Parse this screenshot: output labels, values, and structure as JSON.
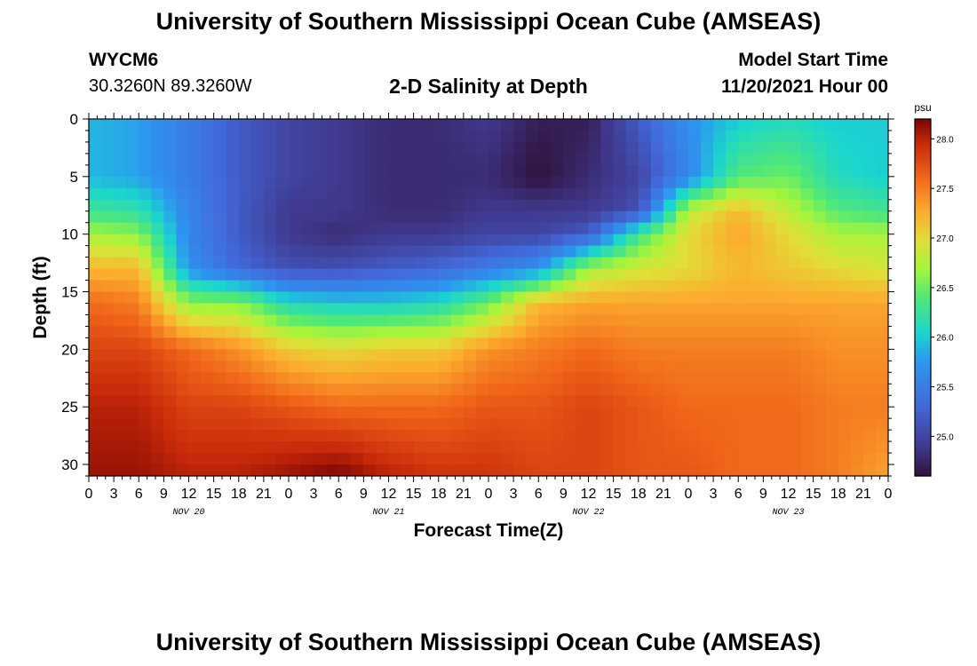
{
  "header": {
    "title_top": "University of Southern Mississippi Ocean Cube (AMSEAS)",
    "title_bottom": "University of Southern Mississippi Ocean Cube (AMSEAS)",
    "station": "WYCM6",
    "coords": "30.3260N  89.3260W",
    "subtitle": "2-D Salinity at Depth",
    "model_start_label": "Model Start Time",
    "model_start_value": "11/20/2021 Hour 00"
  },
  "chart_data": {
    "type": "heatmap",
    "title": "2-D Salinity at Depth",
    "xlabel": "Forecast Time(Z)",
    "ylabel": "Depth (ft)",
    "x_tick_labels": [
      "0",
      "3",
      "6",
      "9",
      "12",
      "15",
      "18",
      "21",
      "0",
      "3",
      "6",
      "9",
      "12",
      "15",
      "18",
      "21",
      "0",
      "3",
      "6",
      "9",
      "12",
      "15",
      "18",
      "21",
      "0",
      "3",
      "6",
      "9",
      "12",
      "15",
      "18",
      "21",
      "0"
    ],
    "x_range_hours": [
      0,
      96
    ],
    "day_labels": [
      {
        "label": "NOV 20",
        "hour": 12
      },
      {
        "label": "NOV 21",
        "hour": 36
      },
      {
        "label": "NOV 22",
        "hour": 60
      },
      {
        "label": "NOV 23",
        "hour": 84
      }
    ],
    "y_ticks": [
      0,
      5,
      10,
      15,
      20,
      25,
      30
    ],
    "y_tick_labels": [
      "0",
      "5",
      "10",
      "15",
      "20",
      "25",
      "30"
    ],
    "ylim": [
      0,
      31
    ],
    "y_inverted": true,
    "colorbar": {
      "unit": "psu",
      "range": [
        24.6,
        28.2
      ],
      "ticks": [
        25.0,
        25.5,
        26.0,
        26.5,
        27.0,
        27.5,
        28.0
      ],
      "tick_labels": [
        "25.0",
        "25.5",
        "26.0",
        "26.5",
        "27.0",
        "27.5",
        "28.0"
      ]
    },
    "grid_hours": [
      0,
      6,
      12,
      18,
      24,
      30,
      36,
      42,
      48,
      54,
      60,
      66,
      72,
      78,
      84,
      90,
      96
    ],
    "grid_depths": [
      0,
      5,
      8,
      10,
      13,
      16,
      20,
      25,
      31
    ],
    "salinity_psu": [
      [
        25.9,
        25.8,
        25.5,
        25.2,
        25.0,
        24.9,
        24.8,
        24.8,
        24.9,
        24.7,
        24.7,
        25.2,
        25.7,
        26.0,
        26.1,
        26.0,
        26.0
      ],
      [
        25.9,
        25.8,
        25.5,
        25.2,
        25.0,
        24.9,
        24.8,
        24.8,
        24.8,
        24.6,
        24.8,
        25.0,
        25.6,
        26.4,
        26.5,
        26.1,
        26.0
      ],
      [
        26.3,
        26.2,
        25.6,
        25.2,
        24.9,
        24.9,
        24.8,
        24.8,
        24.9,
        24.9,
        24.9,
        25.1,
        26.8,
        27.2,
        26.8,
        26.4,
        26.3
      ],
      [
        26.7,
        26.6,
        25.6,
        25.2,
        24.9,
        24.8,
        24.9,
        24.9,
        25.0,
        25.0,
        25.2,
        26.3,
        27.0,
        27.3,
        27.0,
        26.7,
        26.7
      ],
      [
        27.2,
        27.2,
        25.7,
        25.3,
        25.1,
        25.1,
        25.2,
        25.3,
        25.5,
        25.7,
        26.7,
        26.9,
        27.0,
        27.2,
        27.1,
        27.0,
        26.9
      ],
      [
        27.6,
        27.5,
        26.6,
        26.6,
        26.1,
        26.0,
        26.0,
        26.1,
        26.5,
        27.2,
        27.3,
        27.3,
        27.3,
        27.3,
        27.3,
        27.3,
        27.3
      ],
      [
        27.8,
        27.8,
        27.6,
        27.4,
        27.1,
        27.0,
        27.1,
        27.1,
        27.4,
        27.5,
        27.6,
        27.5,
        27.5,
        27.5,
        27.5,
        27.4,
        27.4
      ],
      [
        28.0,
        28.0,
        27.8,
        27.8,
        27.7,
        27.6,
        27.6,
        27.6,
        27.7,
        27.7,
        27.8,
        27.7,
        27.6,
        27.6,
        27.6,
        27.5,
        27.5
      ],
      [
        28.1,
        28.1,
        28.0,
        28.0,
        28.1,
        28.2,
        28.0,
        27.9,
        27.9,
        27.8,
        27.8,
        27.7,
        27.7,
        27.6,
        27.6,
        27.5,
        27.3
      ]
    ]
  }
}
